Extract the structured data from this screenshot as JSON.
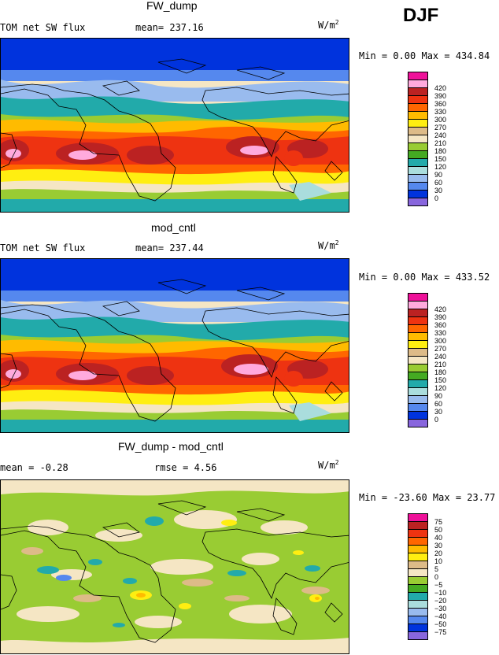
{
  "season": "DJF",
  "panels": [
    {
      "id": "p1",
      "title": "FW_dump",
      "field": "TOM net SW flux",
      "stat": "mean= 237.16",
      "units_base": "W/m",
      "units_sup": "2",
      "minmax": "Min =    0.00 Max = 434.84",
      "cb_labels": [
        "420",
        "390",
        "360",
        "330",
        "300",
        "270",
        "240",
        "210",
        "180",
        "150",
        "120",
        "90",
        "60",
        "30",
        "0"
      ],
      "cb_colors": [
        "#ee1199",
        "#ffaadd",
        "#bb2222",
        "#ee3311",
        "#ff6600",
        "#ffbb00",
        "#ffee11",
        "#ddbb88",
        "#f5e6c4",
        "#99cc33",
        "#44aa22",
        "#22aaaa",
        "#aadddd",
        "#99bbee",
        "#5588ee",
        "#0033dd",
        "#8866dd"
      ]
    },
    {
      "id": "p2",
      "title": "mod_cntl",
      "field": "TOM net SW flux",
      "stat": "mean= 237.44",
      "units_base": "W/m",
      "units_sup": "2",
      "minmax": "Min =    0.00 Max = 433.52",
      "cb_labels": [
        "420",
        "390",
        "360",
        "330",
        "300",
        "270",
        "240",
        "210",
        "180",
        "150",
        "120",
        "90",
        "60",
        "30",
        "0"
      ],
      "cb_colors": [
        "#ee1199",
        "#ffaadd",
        "#bb2222",
        "#ee3311",
        "#ff6600",
        "#ffbb00",
        "#ffee11",
        "#ddbb88",
        "#f5e6c4",
        "#99cc33",
        "#44aa22",
        "#22aaaa",
        "#aadddd",
        "#99bbee",
        "#5588ee",
        "#0033dd",
        "#8866dd"
      ]
    },
    {
      "id": "p3",
      "title": "FW_dump - mod_cntl",
      "field": "mean =   -0.28",
      "stat": "rmse =    4.56",
      "units_base": "W/m",
      "units_sup": "2",
      "minmax": "Min = -23.60 Max =  23.77",
      "cb_labels": [
        "75",
        "50",
        "40",
        "30",
        "20",
        "10",
        "5",
        "0",
        "−5",
        "−10",
        "−20",
        "−30",
        "−40",
        "−50",
        "−75"
      ],
      "cb_colors": [
        "#ee1199",
        "#bb2222",
        "#ee3311",
        "#ff6600",
        "#ffbb00",
        "#ffee11",
        "#ddbb88",
        "#f5e6c4",
        "#99cc33",
        "#44aa22",
        "#22aaaa",
        "#aadddd",
        "#99bbee",
        "#5588ee",
        "#0033dd",
        "#8866dd"
      ]
    }
  ],
  "colors": {
    "deep_blue": "#0033dd",
    "mid_blue": "#5588ee",
    "teal": "#22aaaa",
    "green": "#99cc33",
    "cream": "#f5e6c4",
    "tan": "#ddbb88",
    "yellow": "#ffee11",
    "orange": "#ff6600",
    "red_orange": "#ee3311",
    "dark_red": "#bb2222",
    "pink": "#ffaadd"
  }
}
